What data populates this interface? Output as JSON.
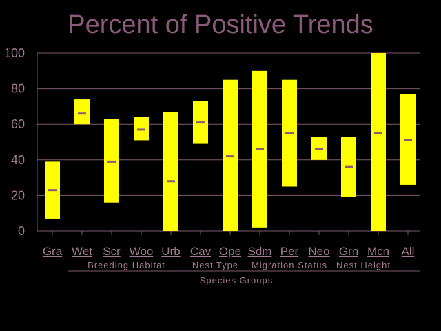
{
  "chart_data": {
    "type": "bar",
    "title": "Percent of Positive Trends",
    "ylim": [
      0,
      100
    ],
    "yticks": [
      0,
      20,
      40,
      60,
      80,
      100
    ],
    "grid": true,
    "categories": [
      "Gra",
      "Wet",
      "Scr",
      "Woo",
      "Urb",
      "Cav",
      "Ope",
      "Sdm",
      "Per",
      "Neo",
      "Grn",
      "Mcn",
      "All"
    ],
    "series": [
      {
        "name": "range_low",
        "values": [
          7,
          60,
          16,
          51,
          0,
          49,
          0,
          2,
          25,
          40,
          19,
          0,
          26
        ]
      },
      {
        "name": "range_high",
        "values": [
          39,
          74,
          63,
          64,
          67,
          73,
          85,
          90,
          85,
          53,
          53,
          100,
          77
        ]
      },
      {
        "name": "value",
        "values": [
          23,
          66,
          39,
          57,
          28,
          61,
          42,
          46,
          55,
          46,
          36,
          55,
          51
        ]
      }
    ],
    "groups": [
      {
        "label": "Breeding Habitat",
        "from": 1,
        "to": 4
      },
      {
        "label": "Nest Type",
        "from": 5,
        "to": 6
      },
      {
        "label": "Migration Status",
        "from": 7,
        "to": 9
      },
      {
        "label": "Nest Height",
        "from": 10,
        "to": 11
      }
    ],
    "group_axis_label": "Species Groups",
    "colors": {
      "background": "#000000",
      "bar": "#ffff00",
      "marker": "#8a5a78",
      "text": "#a07a90",
      "title": "#8a5a78"
    }
  }
}
